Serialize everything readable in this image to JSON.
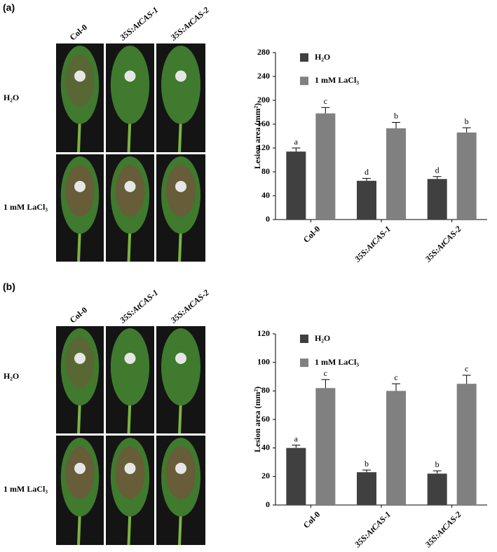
{
  "panels": [
    {
      "label": "(a)",
      "photo_columns": [
        "Col-0",
        "35S:AtCAS-1",
        "35S:AtCAS-2"
      ],
      "photo_rows": [
        "H₂O",
        "1 mM LaCl₃"
      ]
    },
    {
      "label": "(b)",
      "photo_columns": [
        "Col-0",
        "35S:AtCAS-1",
        "35S:AtCAS-2"
      ],
      "photo_rows": [
        "H₂O",
        "1 mM LaCl₃"
      ]
    }
  ],
  "chart_data": [
    {
      "type": "bar",
      "y_label": "Lesion area (mm²)",
      "categories": [
        "Col-0",
        "35S:AtCAS-1",
        "35S:AtCAS-2"
      ],
      "series": [
        {
          "name": "H₂O",
          "color": "#404040",
          "values": [
            114,
            65,
            68
          ],
          "errors": [
            6,
            4,
            4
          ],
          "annotations": [
            "a",
            "d",
            "d"
          ]
        },
        {
          "name": "1 mM LaCl₃",
          "color": "#808080",
          "values": [
            178,
            153,
            146
          ],
          "errors": [
            10,
            10,
            8
          ],
          "annotations": [
            "c",
            "b",
            "b"
          ]
        }
      ],
      "ylim": [
        0,
        280
      ],
      "yticks": [
        0,
        40,
        80,
        120,
        160,
        200,
        240,
        280
      ],
      "legend": "upper left"
    },
    {
      "type": "bar",
      "y_label": "Lesion area (mm²)",
      "categories": [
        "Col-0",
        "35S:AtCAS-1",
        "35S:AtCAS-2"
      ],
      "series": [
        {
          "name": "H₂O",
          "color": "#404040",
          "values": [
            40,
            23,
            22
          ],
          "errors": [
            2,
            1.5,
            2
          ],
          "annotations": [
            "a",
            "b",
            "b"
          ]
        },
        {
          "name": "1 mM LaCl₃",
          "color": "#808080",
          "values": [
            82,
            80,
            85
          ],
          "errors": [
            6,
            5,
            6
          ],
          "annotations": [
            "c",
            "c",
            "c"
          ]
        }
      ],
      "ylim": [
        0,
        120
      ],
      "yticks": [
        0,
        20,
        40,
        60,
        80,
        100,
        120
      ],
      "legend": "upper left"
    }
  ]
}
